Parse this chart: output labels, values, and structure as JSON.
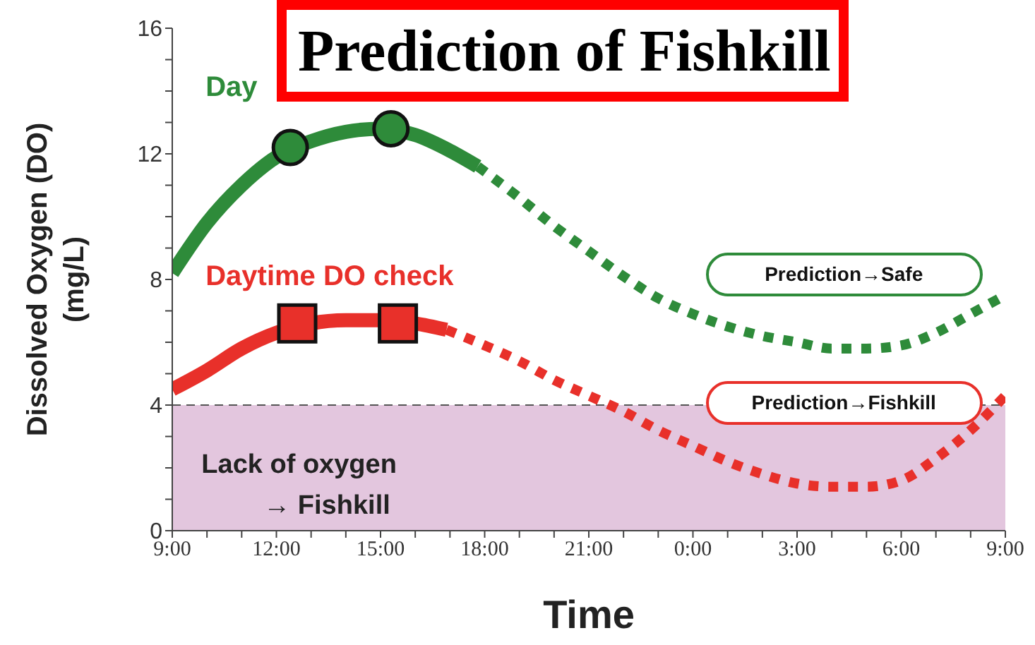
{
  "chart_data": {
    "type": "line",
    "title": "Prediction of Fishkill",
    "xlabel": "Time",
    "ylabel": "Dissolved Oxygen (DO)\n(mg/L)",
    "xlim": [
      "2000-01-01T09:00",
      "2000-01-02T09:00"
    ],
    "ylim": [
      0,
      16
    ],
    "xticks": [
      {
        "value": "2000-01-01T09:00",
        "label": "9:00"
      },
      {
        "value": "2000-01-01T10:00",
        "label": null
      },
      {
        "value": "2000-01-01T11:00",
        "label": null
      },
      {
        "value": "2000-01-01T12:00",
        "label": "12:00"
      },
      {
        "value": "2000-01-01T13:00",
        "label": null
      },
      {
        "value": "2000-01-01T14:00",
        "label": null
      },
      {
        "value": "2000-01-01T15:00",
        "label": "15:00"
      },
      {
        "value": "2000-01-01T16:00",
        "label": null
      },
      {
        "value": "2000-01-01T17:00",
        "label": null
      },
      {
        "value": "2000-01-01T18:00",
        "label": "18:00"
      },
      {
        "value": "2000-01-01T19:00",
        "label": null
      },
      {
        "value": "2000-01-01T20:00",
        "label": null
      },
      {
        "value": "2000-01-01T21:00",
        "label": "21:00"
      },
      {
        "value": "2000-01-01T22:00",
        "label": null
      },
      {
        "value": "2000-01-01T23:00",
        "label": null
      },
      {
        "value": "2000-01-02T00:00",
        "label": "0:00"
      },
      {
        "value": "2000-01-02T01:00",
        "label": null
      },
      {
        "value": "2000-01-02T02:00",
        "label": null
      },
      {
        "value": "2000-01-02T03:00",
        "label": "3:00"
      },
      {
        "value": "2000-01-02T04:00",
        "label": null
      },
      {
        "value": "2000-01-02T05:00",
        "label": null
      },
      {
        "value": "2000-01-02T06:00",
        "label": "6:00"
      },
      {
        "value": "2000-01-02T07:00",
        "label": null
      },
      {
        "value": "2000-01-02T08:00",
        "label": null
      },
      {
        "value": "2000-01-02T09:00",
        "label": "9:00"
      }
    ],
    "yticks": [
      0,
      {
        "value": 1,
        "label": null
      },
      {
        "value": 2,
        "label": null
      },
      {
        "value": 3,
        "label": null
      },
      4,
      {
        "value": 5,
        "label": null
      },
      {
        "value": 6,
        "label": null
      },
      {
        "value": 7,
        "label": null
      },
      8,
      {
        "value": 9,
        "label": null
      },
      {
        "value": 10,
        "label": null
      },
      {
        "value": 11,
        "label": null
      },
      12,
      {
        "value": 13,
        "label": null
      },
      {
        "value": 14,
        "label": null
      },
      {
        "value": 15,
        "label": null
      },
      16
    ],
    "series": [
      {
        "name": "Day",
        "color": "#2e8b3a",
        "line_style": "solid",
        "x": [
          "2000-01-01T09:00",
          "2000-01-01T10:00",
          "2000-01-01T11:00",
          "2000-01-01T12:00",
          "2000-01-01T13:00",
          "2000-01-01T14:00",
          "2000-01-01T15:00",
          "2000-01-01T16:00",
          "2000-01-01T17:00",
          "2000-01-01T17:48"
        ],
        "values": [
          8.2,
          9.8,
          11.0,
          11.9,
          12.4,
          12.7,
          12.8,
          12.6,
          12.1,
          11.6
        ]
      },
      {
        "color": "#2e8b3a",
        "line_style": "dotted",
        "x": [
          "2000-01-01T17:48",
          "2000-01-01T19:00",
          "2000-01-01T20:00",
          "2000-01-01T21:00",
          "2000-01-01T22:00",
          "2000-01-01T23:00",
          "2000-01-02T00:00",
          "2000-01-02T01:00",
          "2000-01-02T02:00",
          "2000-01-02T03:00",
          "2000-01-02T04:00",
          "2000-01-02T05:00",
          "2000-01-02T06:00",
          "2000-01-02T07:00",
          "2000-01-02T08:00",
          "2000-01-02T09:00"
        ],
        "values": [
          11.6,
          10.6,
          9.7,
          8.9,
          8.1,
          7.4,
          6.9,
          6.5,
          6.2,
          6.0,
          5.8,
          5.8,
          5.9,
          6.3,
          6.9,
          7.5
        ]
      },
      {
        "name": "Daytime DO check",
        "color": "#e8302a",
        "line_style": "solid",
        "x": [
          "2000-01-01T09:00",
          "2000-01-01T10:00",
          "2000-01-01T11:00",
          "2000-01-01T12:00",
          "2000-01-01T13:00",
          "2000-01-01T14:00",
          "2000-01-01T15:00",
          "2000-01-01T16:00",
          "2000-01-01T16:54"
        ],
        "values": [
          4.5,
          5.1,
          5.8,
          6.3,
          6.6,
          6.7,
          6.7,
          6.6,
          6.4
        ]
      },
      {
        "color": "#e8302a",
        "line_style": "dotted",
        "x": [
          "2000-01-01T16:54",
          "2000-01-01T18:00",
          "2000-01-01T19:00",
          "2000-01-01T20:00",
          "2000-01-01T21:00",
          "2000-01-01T22:00",
          "2000-01-01T23:00",
          "2000-01-02T00:00",
          "2000-01-02T01:00",
          "2000-01-02T02:00",
          "2000-01-02T03:00",
          "2000-01-02T04:00",
          "2000-01-02T05:00",
          "2000-01-02T06:00",
          "2000-01-02T07:00",
          "2000-01-02T08:00",
          "2000-01-02T09:00"
        ],
        "values": [
          6.4,
          5.9,
          5.4,
          4.8,
          4.3,
          3.8,
          3.2,
          2.7,
          2.2,
          1.8,
          1.5,
          1.4,
          1.4,
          1.6,
          2.3,
          3.2,
          4.3
        ]
      },
      {
        "type": "scatter",
        "color": "#2e8b3a",
        "marker": "circle",
        "x": [
          "2000-01-01T12:24",
          "2000-01-01T15:18"
        ],
        "values": [
          12.2,
          12.8
        ]
      },
      {
        "type": "scatter",
        "color": "#e8302a",
        "marker": "square",
        "x": [
          "2000-01-01T12:36",
          "2000-01-01T15:30"
        ],
        "values": [
          6.6,
          6.6
        ]
      }
    ],
    "bands": [
      {
        "axis": "y",
        "from": 0,
        "to": 4,
        "label": "Lack of oxygen\n→ Fishkill",
        "color": "#e3c6de"
      }
    ],
    "ref_lines": [
      {
        "axis": "y",
        "value": 4,
        "line_style": "dashed",
        "color": "#555555"
      }
    ],
    "annotations": [
      "Prediction→Safe",
      "Prediction→Fishkill"
    ]
  }
}
